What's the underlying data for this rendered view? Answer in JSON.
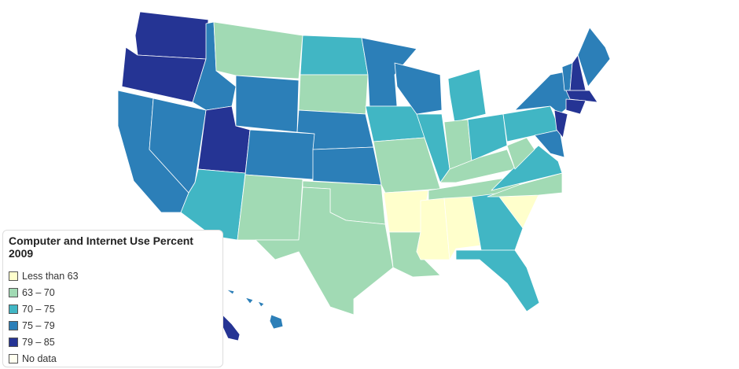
{
  "legend": {
    "title": "Computer and Internet Use Percent 2009",
    "items": [
      {
        "label": "Less than 63",
        "color": "#ffffcc"
      },
      {
        "label": "63 – 70",
        "color": "#a1dab4"
      },
      {
        "label": "70 – 75",
        "color": "#41b6c4"
      },
      {
        "label": "75 – 79",
        "color": "#2c7fb8"
      },
      {
        "label": "79 – 85",
        "color": "#253494"
      },
      {
        "label": "No data",
        "color": "#fffff0"
      }
    ]
  }
}
